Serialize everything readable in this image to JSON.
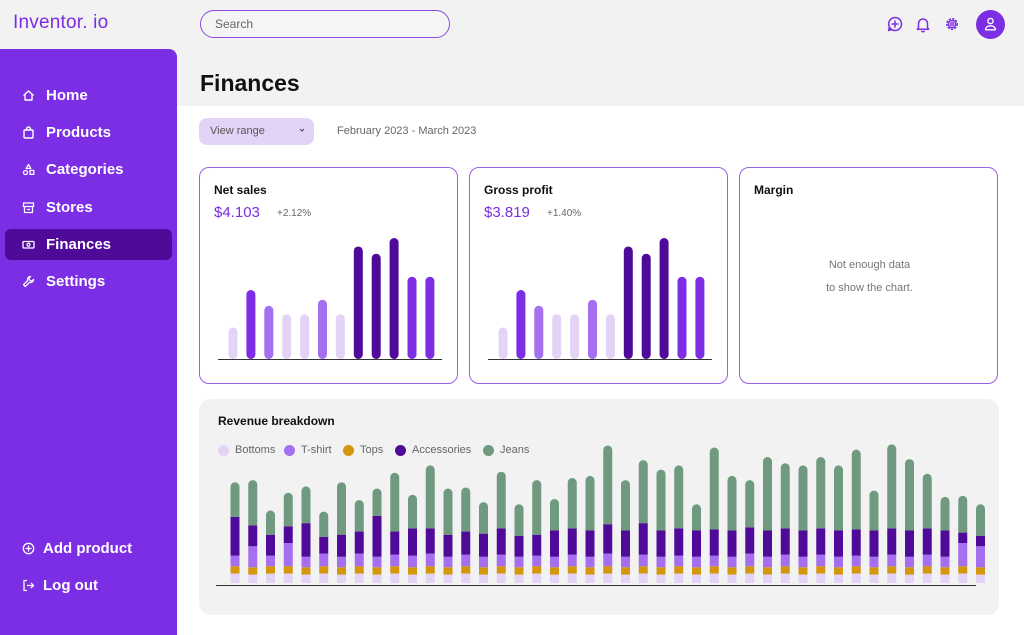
{
  "app": {
    "logo": "Inventor. io"
  },
  "header": {
    "search_placeholder": "Search",
    "icons": [
      "chat-plus-icon",
      "bell-icon",
      "gear-icon",
      "user-icon"
    ]
  },
  "sidebar": {
    "items": [
      {
        "label": "Home",
        "icon": "home-icon",
        "active": false
      },
      {
        "label": "Products",
        "icon": "bag-icon",
        "active": false
      },
      {
        "label": "Categories",
        "icon": "shapes-icon",
        "active": false
      },
      {
        "label": "Stores",
        "icon": "store-icon",
        "active": false
      },
      {
        "label": "Finances",
        "icon": "money-icon",
        "active": true
      },
      {
        "label": "Settings",
        "icon": "wrench-icon",
        "active": false
      }
    ],
    "bottom": [
      {
        "label": "Add product",
        "icon": "plus-circle-icon"
      },
      {
        "label": "Log out",
        "icon": "logout-icon"
      }
    ]
  },
  "page": {
    "title": "Finances",
    "range_button": "View range",
    "range_text": "February 2023 - March 2023"
  },
  "colors": {
    "accent": "#7b2ee3",
    "dark": "#4f0a9a",
    "light": "#e3d4f7",
    "mid": "#a66ff0",
    "tops": "#d4960c",
    "jeans": "#6f9a80"
  },
  "cards": {
    "net_sales": {
      "title": "Net sales",
      "value": "$4.103",
      "delta": "+2.12%"
    },
    "gross_profit": {
      "title": "Gross profit",
      "value": "$3.819",
      "delta": "+1.40%"
    },
    "margin": {
      "title": "Margin",
      "empty_line1": "Not enough data",
      "empty_line2": "to show the chart."
    }
  },
  "chart_data": [
    {
      "type": "bar",
      "values": [
        0.26,
        0.57,
        0.44,
        0.37,
        0.37,
        0.49,
        0.37,
        0.93,
        0.87,
        1.0,
        0.68,
        0.68
      ],
      "shades": [
        "light",
        "accent",
        "mid",
        "light",
        "light",
        "mid",
        "light",
        "dark",
        "dark",
        "dark",
        "accent",
        "accent"
      ]
    },
    {
      "type": "bar",
      "values": [
        0.26,
        0.57,
        0.44,
        0.37,
        0.37,
        0.49,
        0.37,
        0.93,
        0.87,
        1.0,
        0.68,
        0.68
      ],
      "shades": [
        "light",
        "accent",
        "mid",
        "light",
        "light",
        "mid",
        "light",
        "dark",
        "dark",
        "dark",
        "accent",
        "accent"
      ]
    },
    {
      "type": "bar",
      "title": "Revenue breakdown",
      "stacked": true,
      "legend": "top-left",
      "series": [
        {
          "name": "Bottoms",
          "color": "#e3d4f7",
          "values": [
            0.09,
            0.08,
            0.09,
            0.09,
            0.08,
            0.09,
            0.08,
            0.09,
            0.08,
            0.09,
            0.08,
            0.09,
            0.08,
            0.09,
            0.08,
            0.09,
            0.08,
            0.09,
            0.08,
            0.09,
            0.08,
            0.09,
            0.08,
            0.09,
            0.08,
            0.09,
            0.08,
            0.09,
            0.08,
            0.09,
            0.08,
            0.09,
            0.08,
            0.09,
            0.08,
            0.09,
            0.08,
            0.09,
            0.08,
            0.09,
            0.08,
            0.09,
            0.08
          ]
        },
        {
          "name": "Tops",
          "color": "#d4960c",
          "values": [
            0.07,
            0.07,
            0.07,
            0.07,
            0.07,
            0.07,
            0.07,
            0.07,
            0.07,
            0.07,
            0.07,
            0.07,
            0.07,
            0.07,
            0.07,
            0.07,
            0.07,
            0.07,
            0.07,
            0.07,
            0.07,
            0.07,
            0.07,
            0.07,
            0.07,
            0.07,
            0.07,
            0.07,
            0.07,
            0.07,
            0.07,
            0.07,
            0.07,
            0.07,
            0.07,
            0.07,
            0.07,
            0.07,
            0.07,
            0.07,
            0.07,
            0.07,
            0.07
          ]
        },
        {
          "name": "T-shirt",
          "color": "#a66ff0",
          "values": [
            0.1,
            0.2,
            0.1,
            0.22,
            0.1,
            0.12,
            0.1,
            0.12,
            0.1,
            0.11,
            0.11,
            0.12,
            0.1,
            0.11,
            0.1,
            0.11,
            0.1,
            0.1,
            0.1,
            0.11,
            0.1,
            0.12,
            0.1,
            0.11,
            0.1,
            0.1,
            0.1,
            0.1,
            0.1,
            0.12,
            0.1,
            0.11,
            0.1,
            0.11,
            0.1,
            0.1,
            0.1,
            0.11,
            0.1,
            0.11,
            0.1,
            0.22,
            0.2
          ]
        },
        {
          "name": "Accessories",
          "color": "#4f0a9a",
          "values": [
            0.37,
            0.2,
            0.2,
            0.16,
            0.32,
            0.16,
            0.21,
            0.21,
            0.39,
            0.22,
            0.26,
            0.24,
            0.21,
            0.22,
            0.22,
            0.25,
            0.2,
            0.2,
            0.25,
            0.25,
            0.25,
            0.28,
            0.25,
            0.3,
            0.25,
            0.26,
            0.25,
            0.25,
            0.25,
            0.25,
            0.25,
            0.25,
            0.25,
            0.25,
            0.25,
            0.25,
            0.25,
            0.25,
            0.25,
            0.25,
            0.25,
            0.1,
            0.1
          ]
        },
        {
          "name": "Jeans",
          "color": "#6f9a80",
          "values": [
            0.33,
            0.43,
            0.23,
            0.32,
            0.35,
            0.24,
            0.5,
            0.3,
            0.26,
            0.56,
            0.32,
            0.6,
            0.44,
            0.42,
            0.3,
            0.54,
            0.3,
            0.52,
            0.3,
            0.48,
            0.52,
            0.75,
            0.48,
            0.6,
            0.58,
            0.6,
            0.25,
            0.78,
            0.52,
            0.45,
            0.7,
            0.62,
            0.62,
            0.68,
            0.62,
            0.76,
            0.38,
            0.8,
            0.68,
            0.52,
            0.32,
            0.35,
            0.3
          ]
        }
      ]
    }
  ]
}
